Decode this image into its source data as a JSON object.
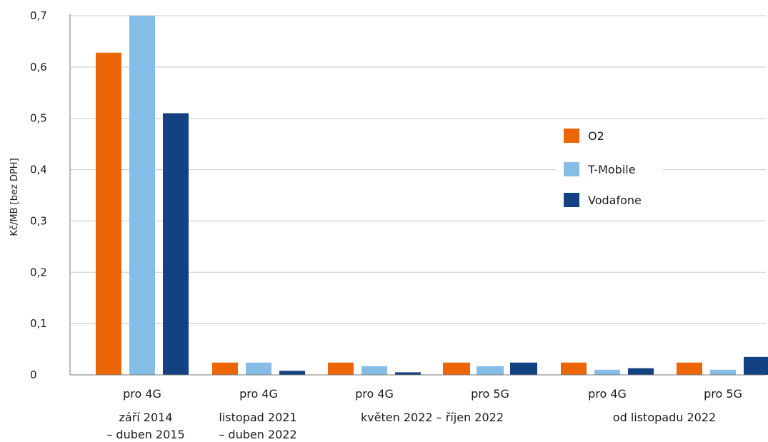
{
  "chart_data": {
    "type": "bar",
    "ylabel": "Kč/MB [bez DPH]",
    "ylim": [
      0,
      0.7
    ],
    "yticks": [
      "0",
      "0,1",
      "0,2",
      "0,3",
      "0,4",
      "0,5",
      "0,6",
      "0,7"
    ],
    "grid": true,
    "legend_position": "right",
    "categories": [
      "pro 4G",
      "pro 4G",
      "pro 4G",
      "pro 5G",
      "pro 4G",
      "pro 5G"
    ],
    "periods": [
      {
        "label_lines": [
          "září 2014",
          "– duben 2015"
        ],
        "categories": [
          0
        ]
      },
      {
        "label_lines": [
          "listopad 2021",
          "– duben 2022"
        ],
        "categories": [
          1
        ]
      },
      {
        "label_lines": [
          "květen 2022 – říjen 2022"
        ],
        "categories": [
          2,
          3
        ]
      },
      {
        "label_lines": [
          "od listopadu 2022"
        ],
        "categories": [
          4,
          5
        ]
      }
    ],
    "series": [
      {
        "name": "O2",
        "color": "#ec6608",
        "values": [
          0.628,
          0.024,
          0.024,
          0.024,
          0.024,
          0.024
        ]
      },
      {
        "name": "T-Mobile",
        "color": "#85bde6",
        "values": [
          0.7,
          0.024,
          0.017,
          0.017,
          0.01,
          0.01
        ]
      },
      {
        "name": "Vodafone",
        "color": "#134283",
        "values": [
          0.51,
          0.008,
          0.005,
          0.024,
          0.013,
          0.035
        ]
      }
    ]
  }
}
